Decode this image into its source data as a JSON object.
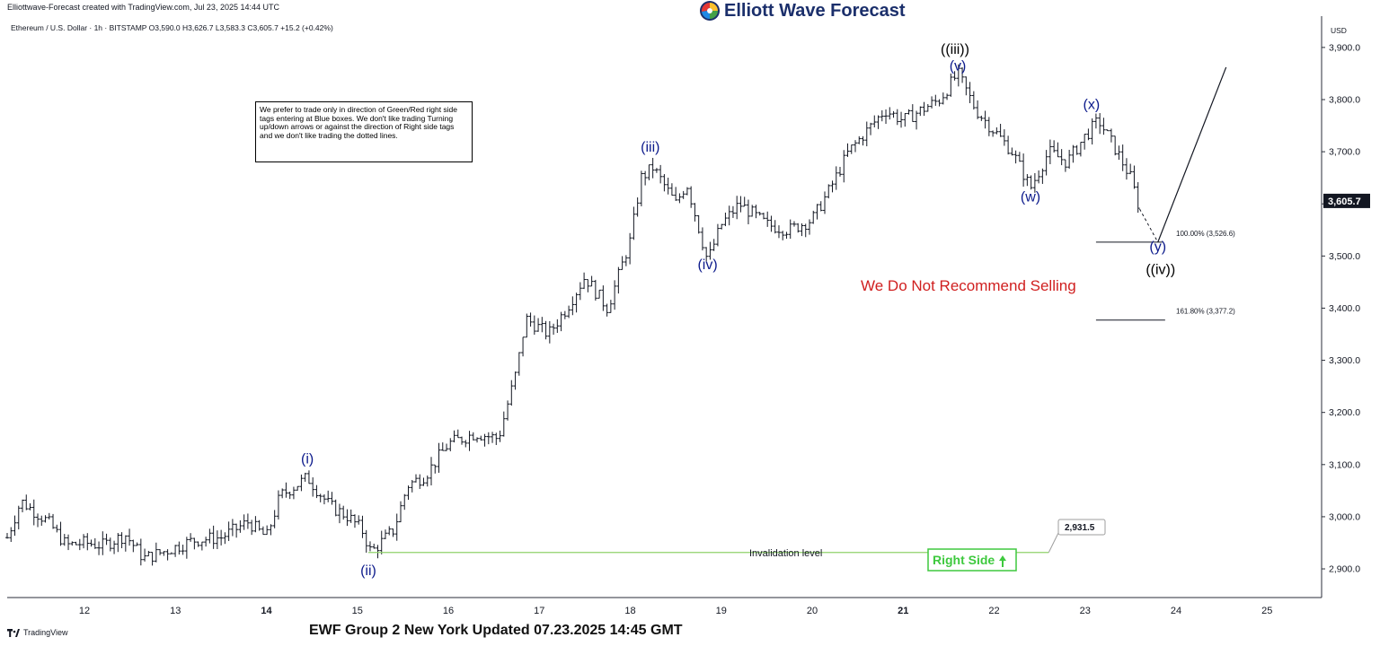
{
  "header": {
    "credit": "Elliottwave-Forecast created with TradingView.com, Jul 23, 2025 14:44 UTC",
    "brand": "Elliott Wave Forecast",
    "symbol_line": "Ethereum / U.S. Dollar · 1h · BITSTAMP  O3,590.0  H3,626.7  L3,583.3  C3,605.7  +15.2 (+0.42%)"
  },
  "note": "We prefer to trade only in direction of Green/Red right side tags entering at Blue boxes. We don't like trading Turning up/down arrows or against the direction of Right side tags and we don't like trading the dotted lines.",
  "footer": {
    "title": "EWF Group 2 New York Updated 07.23.2025 14:45 GMT",
    "tradingview": "TradingView"
  },
  "colors": {
    "wave_blue": "#0d1b8c",
    "wave_black": "#000000",
    "invalidation_green": "#8fd36a",
    "right_side_green": "#3ec93e",
    "warning_red": "#d01f1f"
  },
  "chart_data": {
    "type": "candlestick",
    "title": "",
    "currency": "USD",
    "ylim": [
      2845,
      3960
    ],
    "y_ticks": [
      2900,
      3000,
      3100,
      3200,
      3300,
      3400,
      3500,
      3600,
      3700,
      3800,
      3900
    ],
    "y_tick_labels": [
      "2,900.0",
      "3,000.0",
      "3,100.0",
      "3,200.0",
      "3,300.0",
      "3,400.0",
      "3,500.0",
      "3,600.0",
      "3,700.0",
      "3,800.0",
      "3,900.0"
    ],
    "x_ticks": [
      12,
      13,
      14,
      15,
      16,
      17,
      18,
      19,
      20,
      21,
      22,
      23,
      24,
      25
    ],
    "x_tick_labels": [
      "12",
      "13",
      "14",
      "15",
      "16",
      "17",
      "18",
      "19",
      "20",
      "21",
      "22",
      "23",
      "24",
      "25"
    ],
    "bold_x_ticks": [
      "14",
      "21"
    ],
    "xlim": [
      11.15,
      25.6
    ],
    "last_price": 3605.7,
    "last_price_label": "3,605.7",
    "price_path": [
      [
        11.15,
        2960
      ],
      [
        11.3,
        3030
      ],
      [
        11.6,
        2990
      ],
      [
        11.8,
        2945
      ],
      [
        12.0,
        2950
      ],
      [
        12.2,
        2945
      ],
      [
        12.45,
        2965
      ],
      [
        12.65,
        2920
      ],
      [
        12.9,
        2935
      ],
      [
        13.2,
        2955
      ],
      [
        13.5,
        2960
      ],
      [
        13.8,
        2990
      ],
      [
        14.0,
        2960
      ],
      [
        14.15,
        3040
      ],
      [
        14.45,
        3075
      ],
      [
        14.7,
        3020
      ],
      [
        14.9,
        3000
      ],
      [
        15.05,
        2975
      ],
      [
        15.15,
        2931.5
      ],
      [
        15.4,
        2975
      ],
      [
        15.55,
        3060
      ],
      [
        15.75,
        3080
      ],
      [
        16.0,
        3140
      ],
      [
        16.3,
        3160
      ],
      [
        16.55,
        3150
      ],
      [
        16.75,
        3280
      ],
      [
        16.85,
        3380
      ],
      [
        17.1,
        3350
      ],
      [
        17.3,
        3400
      ],
      [
        17.5,
        3460
      ],
      [
        17.75,
        3400
      ],
      [
        18.0,
        3530
      ],
      [
        18.12,
        3650
      ],
      [
        18.25,
        3670
      ],
      [
        18.5,
        3600
      ],
      [
        18.62,
        3640
      ],
      [
        18.85,
        3490
      ],
      [
        19.0,
        3560
      ],
      [
        19.2,
        3600
      ],
      [
        19.5,
        3560
      ],
      [
        19.75,
        3550
      ],
      [
        20.0,
        3570
      ],
      [
        20.2,
        3630
      ],
      [
        20.4,
        3700
      ],
      [
        20.6,
        3740
      ],
      [
        20.8,
        3780
      ],
      [
        21.0,
        3760
      ],
      [
        21.2,
        3780
      ],
      [
        21.4,
        3800
      ],
      [
        21.6,
        3850
      ],
      [
        21.8,
        3780
      ],
      [
        22.0,
        3740
      ],
      [
        22.2,
        3700
      ],
      [
        22.4,
        3630
      ],
      [
        22.6,
        3700
      ],
      [
        22.8,
        3680
      ],
      [
        23.0,
        3730
      ],
      [
        23.15,
        3760
      ],
      [
        23.35,
        3700
      ],
      [
        23.5,
        3650
      ],
      [
        23.6,
        3590
      ]
    ],
    "wave_labels": [
      {
        "text": "(i)",
        "x": 14.45,
        "y": 3102,
        "color": "blue"
      },
      {
        "text": "(ii)",
        "x": 15.12,
        "y": 2888,
        "color": "blue"
      },
      {
        "text": "(iii)",
        "x": 18.22,
        "y": 3700,
        "color": "blue"
      },
      {
        "text": "(iv)",
        "x": 18.85,
        "y": 3475,
        "color": "blue"
      },
      {
        "text": "((iii))",
        "x": 21.57,
        "y": 3888,
        "color": "black"
      },
      {
        "text": "(v)",
        "x": 21.6,
        "y": 3856,
        "color": "blue"
      },
      {
        "text": "(w)",
        "x": 22.4,
        "y": 3605,
        "color": "blue"
      },
      {
        "text": "(x)",
        "x": 23.07,
        "y": 3782,
        "color": "blue"
      },
      {
        "text": "(y)",
        "x": 23.8,
        "y": 3509,
        "color": "blue"
      },
      {
        "text": "((iv))",
        "x": 23.83,
        "y": 3465,
        "color": "black"
      }
    ],
    "fib_levels": [
      {
        "label": "100.00% (3,526.6)",
        "value": 3526.6,
        "x1": 23.12,
        "x2": 23.85
      },
      {
        "label": "161.80% (3,377.2)",
        "value": 3377.2,
        "x1": 23.12,
        "x2": 23.88
      }
    ],
    "projection": {
      "from": [
        23.6,
        3590
      ],
      "pivot": [
        23.8,
        3526.6
      ],
      "to": [
        24.55,
        3862
      ]
    },
    "invalidation": {
      "label": "Invalidation level",
      "value": 2931.5,
      "value_label": "2,931.5",
      "x1": 15.12,
      "x2": 22.6
    },
    "right_side_tag": {
      "label": "Right Side",
      "x": 22.7,
      "y": 2900
    },
    "annotation": {
      "text": "We Do Not Recommend Selling",
      "x": 20.7,
      "y": 3510
    }
  }
}
